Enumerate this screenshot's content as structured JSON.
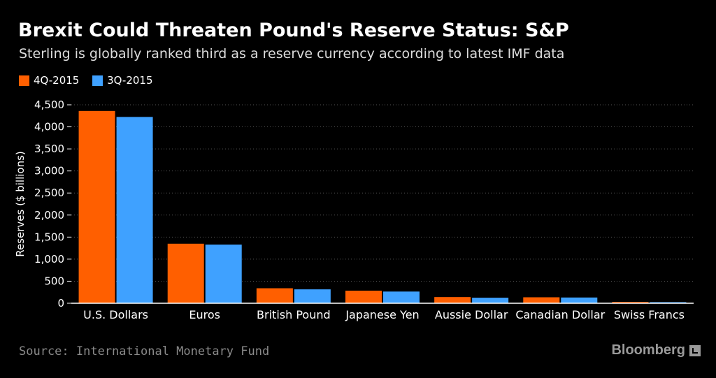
{
  "header": {
    "title": "Brexit Could Threaten Pound's Reserve Status: S&P",
    "subtitle": "Sterling is globally ranked third as a reserve currency according to latest IMF data"
  },
  "footer": {
    "source": "Source: International Monetary Fund",
    "brand": "Bloomberg"
  },
  "colors": {
    "series_4q": "#ff5f00",
    "series_3q": "#3fa1ff",
    "grid": "#555555",
    "background": "#000000"
  },
  "chart_data": {
    "type": "bar",
    "title": "Brexit Could Threaten Pound's Reserve Status: S&P",
    "subtitle": "Sterling is globally ranked third as a reserve currency according to latest IMF data",
    "xlabel": "",
    "ylabel": "Reserves ($ billions)",
    "ylim": [
      0,
      4500
    ],
    "yticks": [
      0,
      500,
      1000,
      1500,
      2000,
      2500,
      3000,
      3500,
      4000,
      4500
    ],
    "ytick_labels": [
      "0",
      "500",
      "1,000",
      "1,500",
      "2,000",
      "2,500",
      "3,000",
      "3,500",
      "4,000",
      "4,500"
    ],
    "grid": true,
    "legend": "top-left",
    "categories": [
      "U.S. Dollars",
      "Euros",
      "British Pound",
      "Japanese Yen",
      "Aussie Dollar",
      "Canadian Dollar",
      "Swiss Francs"
    ],
    "series": [
      {
        "name": "4Q-2015",
        "color": "#ff5f00",
        "values": [
          4360,
          1350,
          340,
          285,
          140,
          135,
          30
        ]
      },
      {
        "name": "3Q-2015",
        "color": "#3fa1ff",
        "values": [
          4225,
          1330,
          315,
          265,
          125,
          130,
          25
        ]
      }
    ]
  }
}
